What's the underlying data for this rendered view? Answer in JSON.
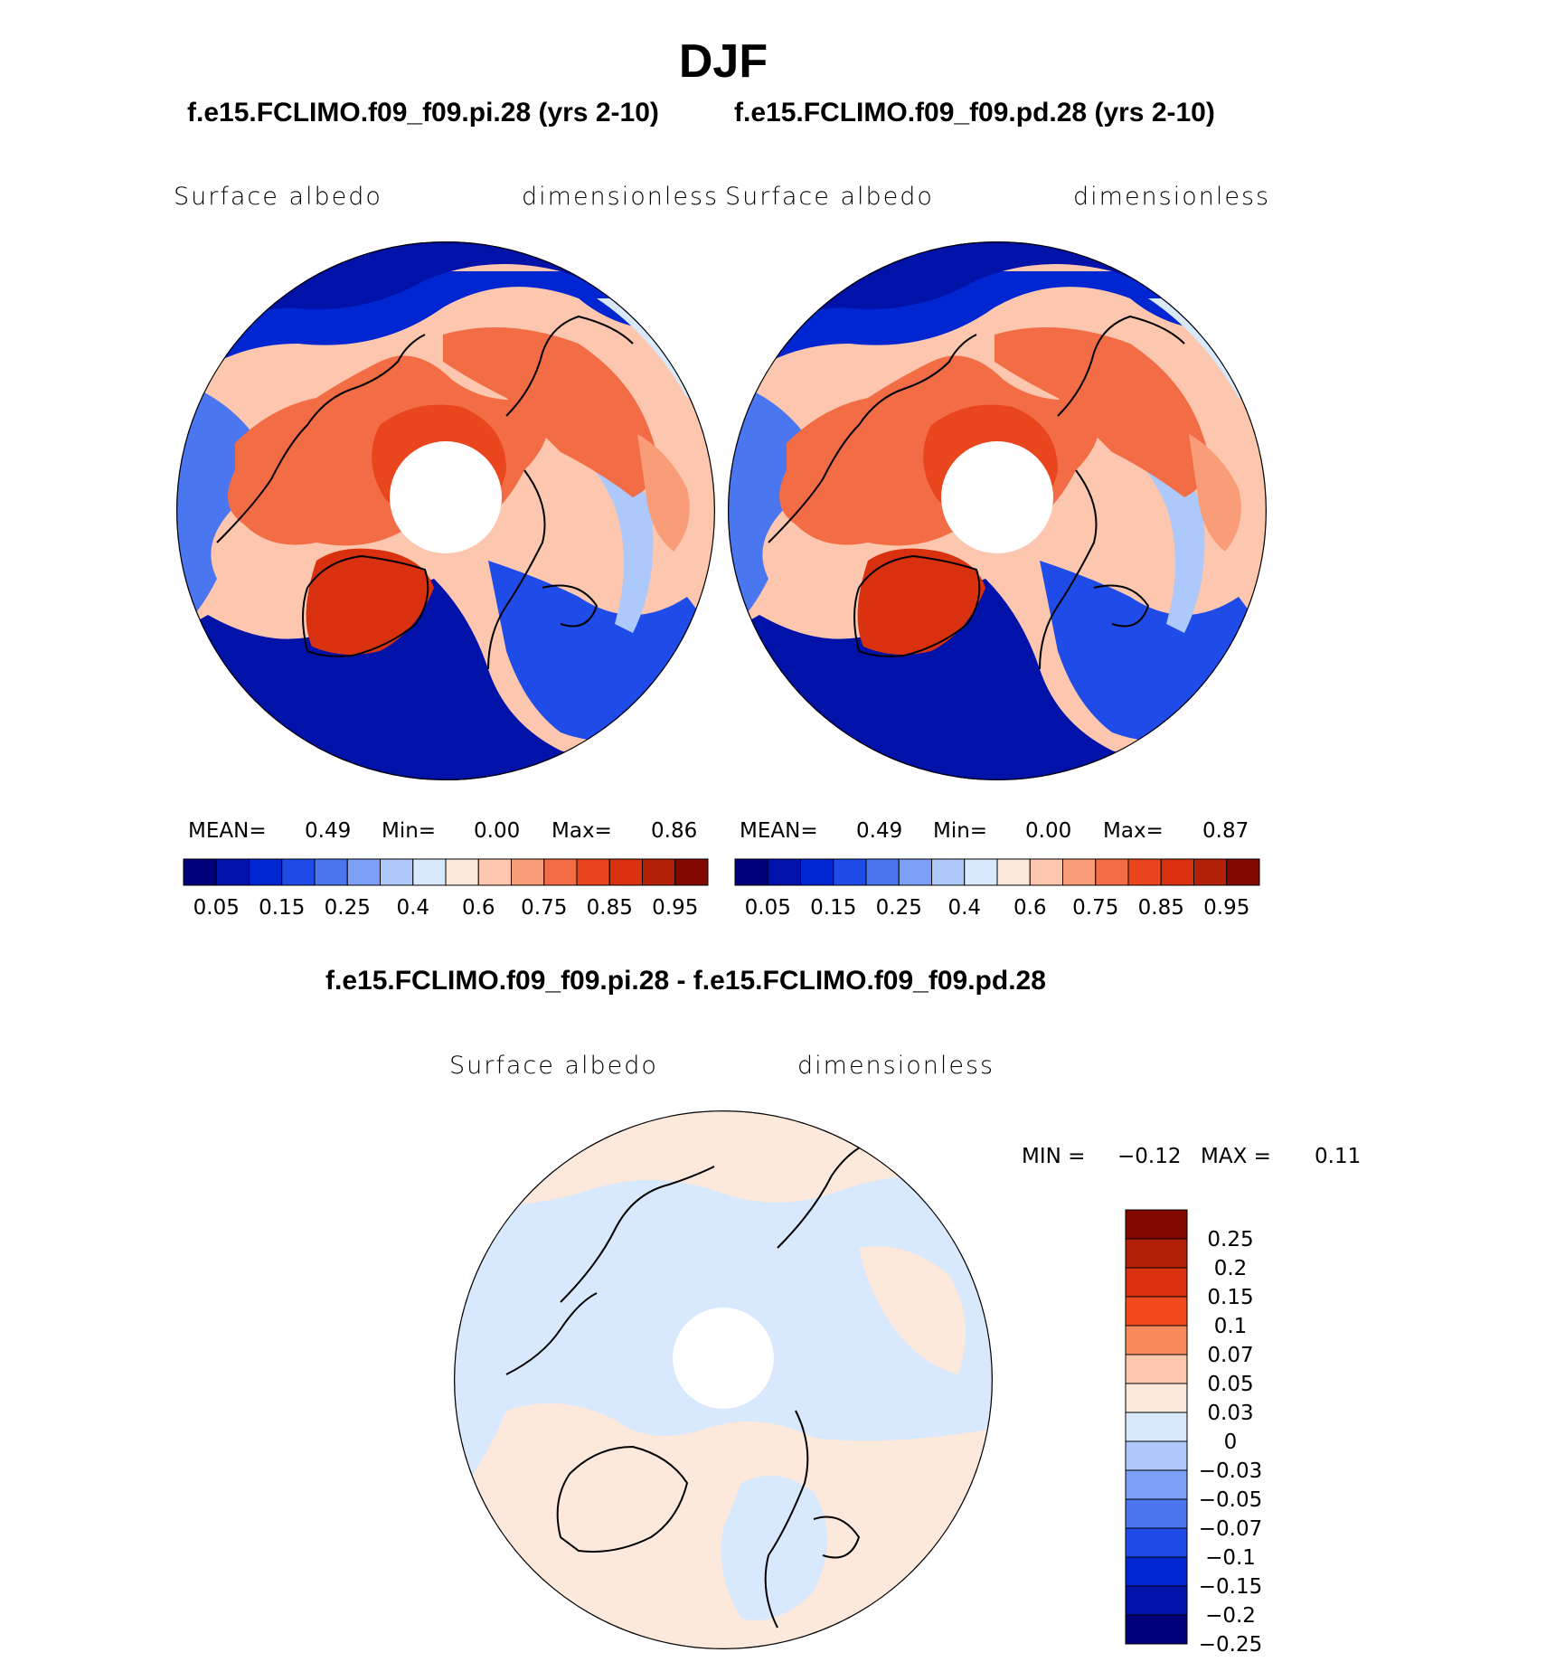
{
  "title": "DJF",
  "panels": [
    {
      "case": "f.e15.FCLIMO.f09_f09.pi.28 (yrs 2-10)",
      "variable": "Surface  albedo",
      "units": "dimensionless",
      "stats": {
        "mean_label": "MEAN=",
        "mean": "0.49",
        "min_label": "Min=",
        "min": "0.00",
        "max_label": "Max=",
        "max": "0.86"
      }
    },
    {
      "case": "f.e15.FCLIMO.f09_f09.pd.28 (yrs 2-10)",
      "variable": "Surface  albedo",
      "units": "dimensionless",
      "stats": {
        "mean_label": "MEAN=",
        "mean": "0.49",
        "min_label": "Min=",
        "min": "0.00",
        "max_label": "Max=",
        "max": "0.87"
      }
    }
  ],
  "difference": {
    "title": "f.e15.FCLIMO.f09_f09.pi.28 - f.e15.FCLIMO.f09_f09.pd.28",
    "variable": "Surface  albedo",
    "units": "dimensionless",
    "stats": {
      "min_label": "MIN =",
      "min": "−0.12",
      "max_label": "MAX =",
      "max": "0.11"
    }
  },
  "chart_data": [
    {
      "type": "heatmap",
      "projection": "north polar stereographic",
      "title": "Surface albedo (pi)",
      "colorbar": {
        "orientation": "horizontal",
        "levels": [
          0.05,
          0.1,
          0.15,
          0.2,
          0.25,
          0.3,
          0.4,
          0.5,
          0.6,
          0.7,
          0.75,
          0.8,
          0.85,
          0.9,
          0.95
        ],
        "tick_labels": [
          "0.05",
          "0.15",
          "0.25",
          "0.4",
          "0.6",
          "0.75",
          "0.85",
          "0.95"
        ],
        "colors": [
          "#00007a",
          "#0012a8",
          "#0026d2",
          "#1f4be8",
          "#4a76f0",
          "#7ba0f6",
          "#adc8fb",
          "#d8e8fd",
          "#fde8dc",
          "#fcc7ae",
          "#f89d77",
          "#f26d45",
          "#e9461e",
          "#d93110",
          "#b32008",
          "#820800"
        ]
      },
      "stats": {
        "mean": 0.49,
        "min": 0.0,
        "max": 0.86
      }
    },
    {
      "type": "heatmap",
      "projection": "north polar stereographic",
      "title": "Surface albedo (pd)",
      "colorbar": {
        "orientation": "horizontal",
        "levels": [
          0.05,
          0.1,
          0.15,
          0.2,
          0.25,
          0.3,
          0.4,
          0.5,
          0.6,
          0.7,
          0.75,
          0.8,
          0.85,
          0.9,
          0.95
        ],
        "tick_labels": [
          "0.05",
          "0.15",
          "0.25",
          "0.4",
          "0.6",
          "0.75",
          "0.85",
          "0.95"
        ],
        "colors": [
          "#00007a",
          "#0012a8",
          "#0026d2",
          "#1f4be8",
          "#4a76f0",
          "#7ba0f6",
          "#adc8fb",
          "#d8e8fd",
          "#fde8dc",
          "#fcc7ae",
          "#f89d77",
          "#f26d45",
          "#e9461e",
          "#d93110",
          "#b32008",
          "#820800"
        ]
      },
      "stats": {
        "mean": 0.49,
        "min": 0.0,
        "max": 0.87
      }
    },
    {
      "type": "heatmap",
      "projection": "north polar stereographic",
      "title": "Surface albedo difference (pi - pd)",
      "colorbar": {
        "orientation": "vertical",
        "tick_labels": [
          "0.25",
          "0.2",
          "0.15",
          "0.1",
          "0.07",
          "0.05",
          "0.03",
          "0",
          "−0.03",
          "−0.05",
          "−0.07",
          "−0.1",
          "−0.15",
          "−0.2",
          "−0.25"
        ],
        "colors": [
          "#820800",
          "#b32008",
          "#d93110",
          "#f04a1e",
          "#f88a5c",
          "#fcc7ae",
          "#fde8dc",
          "#d8e8fd",
          "#adc8fb",
          "#7ba0f6",
          "#4a76f0",
          "#1f4be8",
          "#0026d2",
          "#0012a8",
          "#00007a"
        ]
      },
      "stats": {
        "min": -0.12,
        "max": 0.11
      }
    }
  ]
}
